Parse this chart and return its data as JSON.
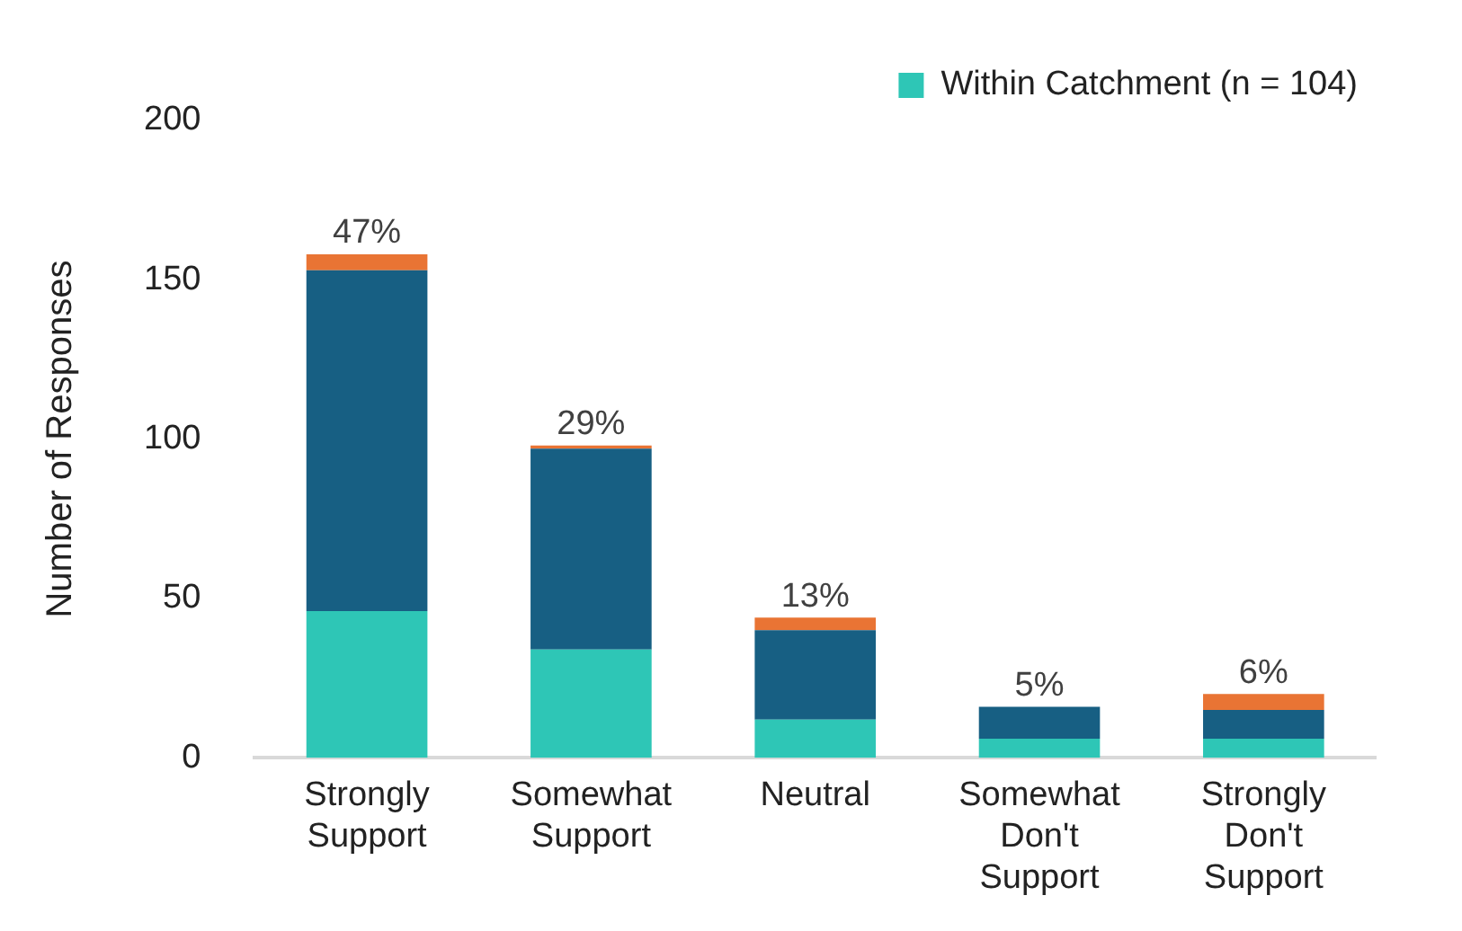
{
  "chart_data": {
    "type": "bar",
    "stacked": true,
    "ylabel": "Number of Responses",
    "categories": [
      "Strongly\nSupport",
      "Somewhat\nSupport",
      "Neutral",
      "Somewhat\nDon't\nSupport",
      "Strongly\nDon't\nSupport"
    ],
    "series": [
      {
        "name": "Within Catchment (n = 104)",
        "color": "#2ec6b6",
        "values": [
          46,
          34,
          12,
          6,
          6
        ]
      },
      {
        "color": "#175f83",
        "values": [
          107,
          63,
          28,
          10,
          9
        ]
      },
      {
        "color": "#e97434",
        "values": [
          5,
          1,
          4,
          0,
          5
        ]
      }
    ],
    "ylim": [
      0,
      200
    ],
    "yticks": [
      0,
      50,
      100,
      150,
      200
    ],
    "grid": false,
    "legend": "top right",
    "annotations": [
      {
        "text": "47%",
        "x": "Strongly\nSupport",
        "y": 158
      },
      {
        "text": "29%",
        "x": "Somewhat\nSupport",
        "y": 98
      },
      {
        "text": "13%",
        "x": "Neutral",
        "y": 44
      },
      {
        "text": "5%",
        "x": "Somewhat\nDon't\nSupport",
        "y": 16
      },
      {
        "text": "6%",
        "x": "Strongly\nDon't\nSupport",
        "y": 20
      }
    ]
  }
}
